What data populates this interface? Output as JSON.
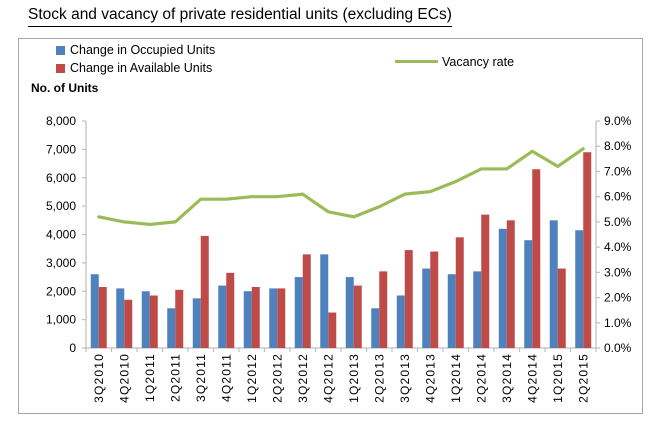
{
  "page": {
    "title": "Stock and vacancy of private residential units (excluding ECs)"
  },
  "legend": {
    "occupied_label": "Change in Occupied Units",
    "available_label": "Change in Available Units",
    "vacancy_label": "Vacancy rate"
  },
  "colors": {
    "occupied": "#4F81BD",
    "available": "#BE4B48",
    "vacancy": "#9BBB59",
    "axis_line": "#BFBFBF",
    "text": "#000000",
    "box_border": "#A6A6A6"
  },
  "chart_data": {
    "type": "bar",
    "title": "Stock and vacancy of private residential units (excluding ECs)",
    "categories": [
      "3Q2010",
      "4Q2010",
      "1Q2011",
      "2Q2011",
      "3Q2011",
      "4Q2011",
      "1Q2012",
      "2Q2012",
      "3Q2012",
      "4Q2012",
      "1Q2013",
      "2Q2013",
      "3Q2013",
      "4Q2013",
      "1Q2014",
      "2Q2014",
      "3Q2014",
      "4Q2014",
      "1Q2015",
      "2Q2015"
    ],
    "series": [
      {
        "name": "Change in Occupied Units",
        "type": "bar",
        "axis": "left",
        "color": "#4F81BD",
        "values": [
          2600,
          2100,
          2000,
          1400,
          1750,
          2200,
          2000,
          2100,
          2500,
          3300,
          2500,
          1400,
          1850,
          2800,
          2600,
          2700,
          4200,
          3800,
          4500,
          4150
        ]
      },
      {
        "name": "Change in Available Units",
        "type": "bar",
        "axis": "left",
        "color": "#BE4B48",
        "values": [
          2150,
          1700,
          1850,
          2050,
          3950,
          2650,
          2150,
          2100,
          3300,
          1250,
          2200,
          2700,
          3450,
          3400,
          3900,
          4700,
          4500,
          6300,
          2800,
          6900
        ]
      },
      {
        "name": "Vacancy rate",
        "type": "line",
        "axis": "right",
        "color": "#9BBB59",
        "values": [
          5.2,
          5.0,
          4.9,
          5.0,
          5.9,
          5.9,
          6.0,
          6.0,
          6.1,
          5.4,
          5.2,
          5.6,
          6.1,
          6.2,
          6.6,
          7.1,
          7.1,
          7.8,
          7.2,
          7.9
        ]
      }
    ],
    "left_axis": {
      "title": "No. of Units",
      "min": 0,
      "max": 8000,
      "step": 1000,
      "format": "thousands"
    },
    "right_axis": {
      "min": 0,
      "max": 9,
      "step": 1,
      "format": "percent1"
    },
    "grid": false,
    "legend_position": "top"
  }
}
